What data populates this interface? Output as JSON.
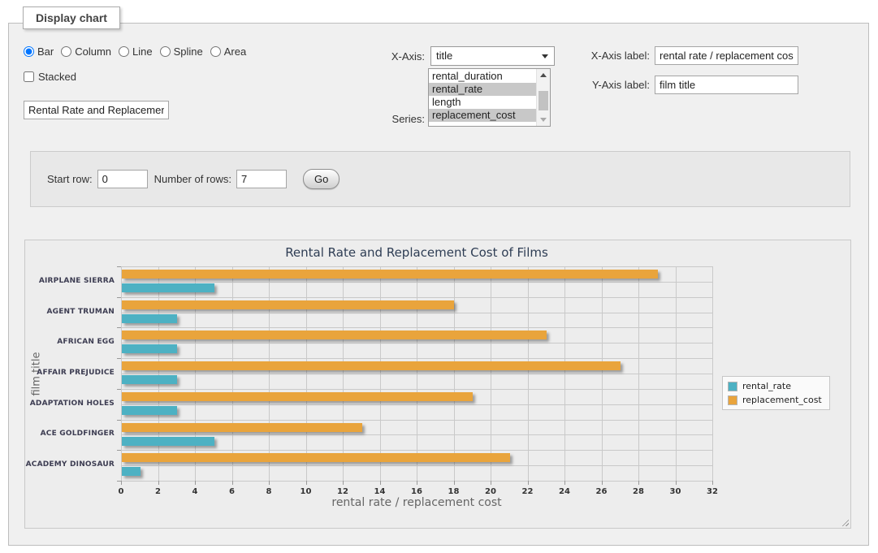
{
  "display_chart": {
    "title": "Display chart",
    "chart_types": {
      "options": [
        "Bar",
        "Column",
        "Line",
        "Spline",
        "Area"
      ],
      "selected": "Bar"
    },
    "stacked": {
      "label": "Stacked",
      "checked": false
    },
    "chart_title_input": {
      "value": "Rental Rate and Replacement Cost of Films"
    },
    "x_axis_select": {
      "label": "X-Axis:",
      "value": "title"
    },
    "series_select": {
      "label": "Series:",
      "options": [
        {
          "name": "rental_duration",
          "selected": false
        },
        {
          "name": "rental_rate",
          "selected": true
        },
        {
          "name": "length",
          "selected": false
        },
        {
          "name": "replacement_cost",
          "selected": true
        }
      ]
    },
    "x_axis_label_input": {
      "label": "X-Axis label:",
      "value": "rental rate / replacement cost"
    },
    "y_axis_label_input": {
      "label": "Y-Axis label:",
      "value": "film title"
    }
  },
  "row_controls": {
    "start_row_label": "Start row:",
    "start_row_value": "0",
    "number_of_rows_label": "Number of rows:",
    "number_of_rows_value": "7",
    "go_button_label": "Go"
  },
  "chart_data": {
    "type": "bar",
    "orientation": "horizontal",
    "title": "Rental Rate and Replacement Cost of Films",
    "xlabel": "rental rate / replacement cost",
    "ylabel": "film title",
    "categories": [
      "AIRPLANE SIERRA",
      "AGENT TRUMAN",
      "AFRICAN EGG",
      "AFFAIR PREJUDICE",
      "ADAPTATION HOLES",
      "ACE GOLDFINGER",
      "ACADEMY DINOSAUR"
    ],
    "series": [
      {
        "name": "rental_rate",
        "color": "#4DB1C3",
        "values": [
          4.99,
          2.99,
          2.99,
          2.99,
          2.99,
          4.99,
          0.99
        ]
      },
      {
        "name": "replacement_cost",
        "color": "#E9A43C",
        "values": [
          28.99,
          17.99,
          22.99,
          26.99,
          18.99,
          12.99,
          20.99
        ]
      }
    ],
    "xlim": [
      0,
      32
    ],
    "xtick_step": 2,
    "grid": true,
    "legend_position": "right"
  }
}
